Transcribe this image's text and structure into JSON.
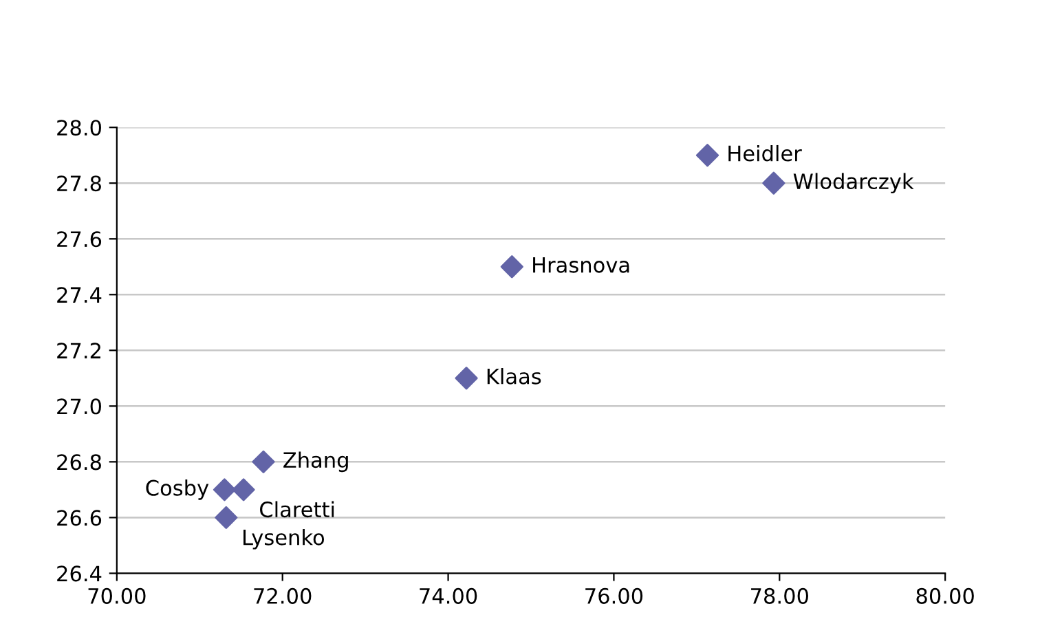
{
  "chart_data": {
    "type": "scatter",
    "marker": "diamond",
    "grid": "y",
    "legend": false,
    "x": [
      77.13,
      77.93,
      74.77,
      74.22,
      71.77,
      71.53,
      71.3,
      71.32
    ],
    "series": [
      {
        "color": "#6264a7",
        "values": [
          27.9,
          27.8,
          27.5,
          27.1,
          26.8,
          26.7,
          26.7,
          26.6
        ]
      }
    ],
    "annotations": [
      {
        "text": "Heidler",
        "x": 77.13,
        "y": 27.9
      },
      {
        "text": "Wlodarczyk",
        "x": 77.93,
        "y": 27.8
      },
      {
        "text": "Hrasnova",
        "x": 74.77,
        "y": 27.5
      },
      {
        "text": "Klaas",
        "x": 74.22,
        "y": 27.1
      },
      {
        "text": "Zhang",
        "x": 71.77,
        "y": 26.8
      },
      {
        "text": "Claretti",
        "x": 71.53,
        "y": 26.7
      },
      {
        "text": "Cosby",
        "x": 71.3,
        "y": 26.7
      },
      {
        "text": "Lysenko",
        "x": 71.32,
        "y": 26.6
      }
    ],
    "xlim": [
      70,
      80
    ],
    "ylim": [
      26.4,
      28.0
    ],
    "xticks": [
      {
        "value": 70,
        "label": "70.00"
      },
      {
        "value": 72,
        "label": "72.00"
      },
      {
        "value": 74,
        "label": "74.00"
      },
      {
        "value": 76,
        "label": "76.00"
      },
      {
        "value": 78,
        "label": "78.00"
      },
      {
        "value": 80,
        "label": "80.00"
      }
    ],
    "yticks": [
      {
        "value": 26.4,
        "label": "26.4"
      },
      {
        "value": 26.6,
        "label": "26.6"
      },
      {
        "value": 26.8,
        "label": "26.8"
      },
      {
        "value": 27.0,
        "label": "27.0"
      },
      {
        "value": 27.2,
        "label": "27.2"
      },
      {
        "value": 27.4,
        "label": "27.4"
      },
      {
        "value": 27.6,
        "label": "27.6"
      },
      {
        "value": 27.8,
        "label": "27.8"
      },
      {
        "value": 28.0,
        "label": "28.0"
      }
    ]
  }
}
